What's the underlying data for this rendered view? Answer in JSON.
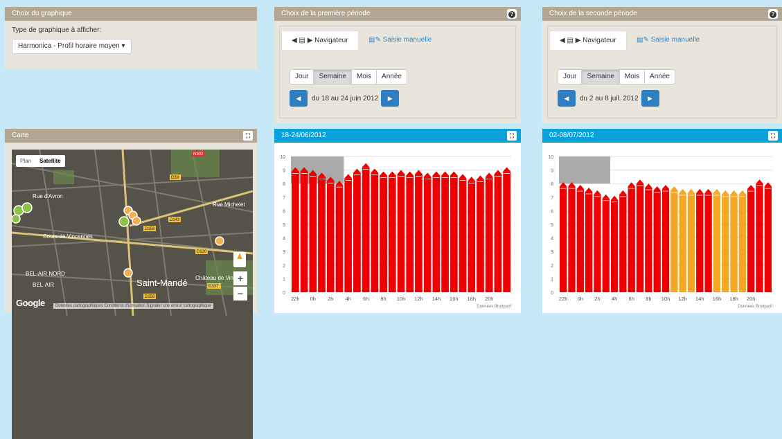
{
  "graph_choice": {
    "title": "Choix du graphique",
    "label": "Type de graphique à afficher:",
    "selected": "Harmonica - Profil horaire moyen",
    "caret": "▾"
  },
  "period1": {
    "title": "Choix de la première période",
    "help_icon": "?",
    "tab_nav": "Navigateur",
    "tab_manual": "Saisie manuelle",
    "granularity": [
      "Jour",
      "Semaine",
      "Mois",
      "Année"
    ],
    "selected_granularity": "Semaine",
    "period_text": "du 18 au 24 juin 2012",
    "prev": "◀",
    "next": "▶"
  },
  "period2": {
    "title": "Choix de la seconde période",
    "help_icon": "?",
    "tab_nav": "Navigateur",
    "tab_manual": "Saisie manuelle",
    "granularity": [
      "Jour",
      "Semaine",
      "Mois",
      "Année"
    ],
    "selected_granularity": "Semaine",
    "period_text": "du 2 au 8 juil. 2012",
    "prev": "◀",
    "next": "▶"
  },
  "map": {
    "title": "Carte",
    "expand_icon": "⛶",
    "tab_plan": "Plan",
    "tab_satellite": "Satellite",
    "zoom_in": "+",
    "zoom_out": "−",
    "google": "Google",
    "attribution": "Données cartographiques  Conditions d'utilisation  Signaler une erreur cartographique",
    "labels": {
      "rue_avron": "Rue d'Avron",
      "rue_michelet": "Rue Michelet",
      "cours_vincennes": "Cours de Vincennes",
      "bel_air_nord": "BEL-AIR NORD",
      "bel_air": "BEL-AIR",
      "saint_mande": "Saint-Mandé",
      "chateau": "Château de Vinc",
      "d39": "D39",
      "d143": "D143",
      "d158": "D158",
      "d120": "D120",
      "d337": "D337",
      "d158b": "D158",
      "n302": "N302"
    }
  },
  "colors": {
    "red": "#ee0000",
    "orange": "#f5a623",
    "grey": "#aaaaaa",
    "blue_head": "#0aa0da",
    "tan_head": "#b3a794"
  },
  "chart_data": [
    {
      "title": "18-24/06/2012",
      "type": "bar",
      "credit": "Données Bruitparif",
      "x_tick_labels": [
        "22h",
        "0h",
        "2h",
        "4h",
        "6h",
        "8h",
        "10h",
        "12h",
        "14h",
        "16h",
        "18h",
        "20h"
      ],
      "y_tick_labels": [
        "0",
        "1",
        "2",
        "3",
        "4",
        "5",
        "6",
        "7",
        "8",
        "9",
        "10"
      ],
      "ylim": [
        0,
        10
      ],
      "shaded_hours": [
        0,
        6
      ],
      "values": [
        8.9,
        8.9,
        8.7,
        8.5,
        8.2,
        7.9,
        8.4,
        8.8,
        9.2,
        8.8,
        8.6,
        8.6,
        8.7,
        8.6,
        8.7,
        8.5,
        8.6,
        8.6,
        8.6,
        8.4,
        8.2,
        8.3,
        8.5,
        8.7,
        8.9
      ],
      "value_colors": [
        "red",
        "red",
        "red",
        "red",
        "red",
        "red",
        "red",
        "red",
        "red",
        "red",
        "red",
        "red",
        "red",
        "red",
        "red",
        "red",
        "red",
        "red",
        "red",
        "red",
        "red",
        "red",
        "red",
        "red",
        "red"
      ]
    },
    {
      "title": "02-08/07/2012",
      "type": "bar",
      "credit": "Données Bruitparif",
      "x_tick_labels": [
        "22h",
        "0h",
        "2h",
        "4h",
        "6h",
        "8h",
        "10h",
        "12h",
        "14h",
        "16h",
        "18h",
        "20h"
      ],
      "y_tick_labels": [
        "0",
        "1",
        "2",
        "3",
        "4",
        "5",
        "6",
        "7",
        "8",
        "9",
        "10"
      ],
      "ylim": [
        0,
        10
      ],
      "shaded_hours": [
        0,
        6
      ],
      "values": [
        7.8,
        7.8,
        7.6,
        7.4,
        7.2,
        6.9,
        6.8,
        7.2,
        7.8,
        8.0,
        7.7,
        7.5,
        7.6,
        7.5,
        7.3,
        7.3,
        7.3,
        7.3,
        7.3,
        7.2,
        7.2,
        7.2,
        7.6,
        8.0,
        7.8
      ],
      "value_colors": [
        "red",
        "red",
        "red",
        "red",
        "red",
        "red",
        "red",
        "red",
        "red",
        "red",
        "red",
        "red",
        "red",
        "orange",
        "orange",
        "orange",
        "red",
        "red",
        "orange",
        "orange",
        "orange",
        "orange",
        "red",
        "red",
        "red"
      ]
    }
  ]
}
